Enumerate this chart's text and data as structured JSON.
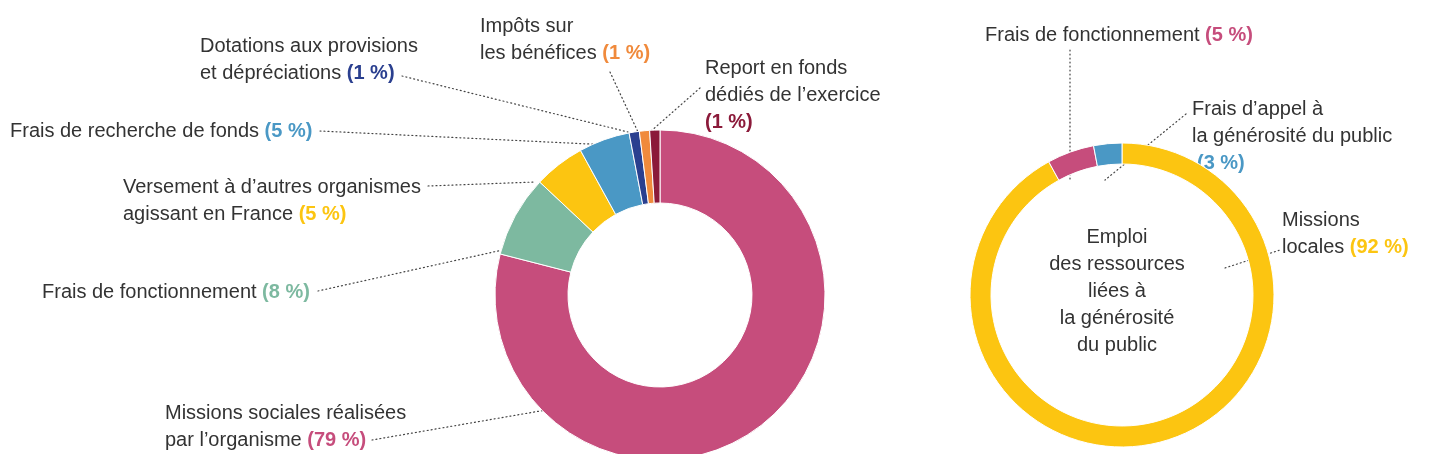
{
  "chart_data": [
    {
      "type": "donut",
      "categories": [
        "Missions sociales réalisées par l’organisme",
        "Frais de fonctionnement",
        "Versement à d’autres organismes agissant en France",
        "Frais de recherche de fonds",
        "Dotations aux provisions et dépréciations",
        "Impôts sur les bénéfices",
        "Report en fonds dédiés de l’exercice"
      ],
      "values": [
        79,
        8,
        5,
        5,
        1,
        1,
        1
      ],
      "colors": [
        "#c64d7c",
        "#7db9a0",
        "#fcc511",
        "#4a98c5",
        "#2a3f8f",
        "#f08a3c",
        "#8b1a3a"
      ],
      "value_labels": [
        "(79 %)",
        "(8 %)",
        "(5 %)",
        "(5 %)",
        "(1 %)",
        "(1 %)",
        "(1 %)"
      ]
    },
    {
      "type": "donut",
      "title": "Emploi des ressources liées à la générosité du public",
      "categories": [
        "Missions locales",
        "Frais de fonctionnement",
        "Frais d’appel à la générosité du public"
      ],
      "values": [
        92,
        5,
        3
      ],
      "colors": [
        "#fcc511",
        "#c64d7c",
        "#4a98c5"
      ],
      "value_labels": [
        "(92 %)",
        "(5 %)",
        "(3 %)"
      ]
    }
  ]
}
